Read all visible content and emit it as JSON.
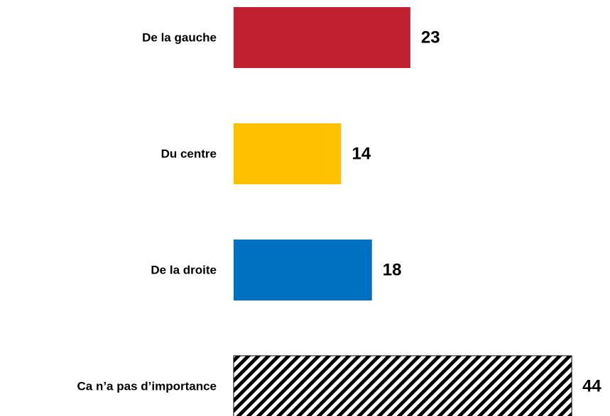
{
  "chart_data": {
    "type": "barh",
    "categories": [
      "De la gauche",
      "Du centre",
      "De la droite",
      "Ca n’a pas d’importance"
    ],
    "values": [
      23,
      14,
      18,
      44
    ],
    "colors": [
      "#c0202f",
      "#ffc000",
      "#0070c0",
      "#000000"
    ],
    "hatch": [
      false,
      false,
      false,
      true
    ]
  }
}
